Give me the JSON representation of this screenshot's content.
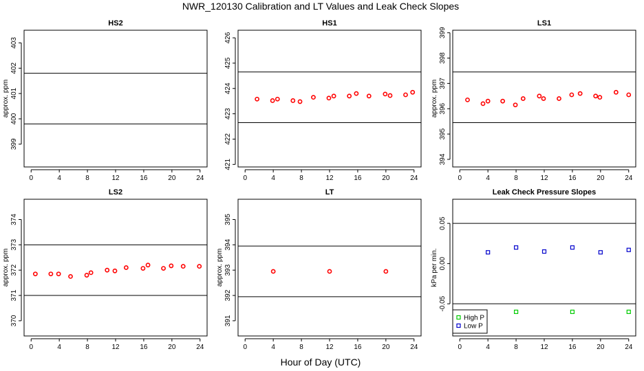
{
  "title": "NWR_120130  Calibration and LT Values and Leak Check Slopes",
  "xlabel": "Hour of Day (UTC)",
  "chart_data": [
    {
      "type": "scatter",
      "title": "HS2",
      "ylabel": "approx. ppm",
      "xlim": [
        -1,
        25
      ],
      "ylim": [
        398.1,
        403.5
      ],
      "xticks": [
        0,
        4,
        8,
        12,
        16,
        20,
        24
      ],
      "yticks": [
        399,
        400,
        401,
        402,
        403
      ],
      "hlines": [
        401.8,
        399.8
      ],
      "series": [
        {
          "marker": "circle",
          "color": "#ff0000",
          "x": [],
          "y": []
        }
      ]
    },
    {
      "type": "scatter",
      "title": "HS1",
      "ylabel": "",
      "xlim": [
        -1,
        25
      ],
      "ylim": [
        420.9,
        426.3
      ],
      "xticks": [
        0,
        4,
        8,
        12,
        16,
        20,
        24
      ],
      "yticks": [
        421,
        422,
        423,
        424,
        425,
        426
      ],
      "hlines": [
        424.65,
        422.65
      ],
      "series": [
        {
          "marker": "circle",
          "color": "#ff0000",
          "x": [
            1.7,
            3.9,
            4.6,
            6.8,
            7.8,
            9.7,
            11.9,
            12.6,
            14.8,
            15.8,
            17.6,
            19.9,
            20.6,
            22.8,
            23.8
          ],
          "y": [
            423.58,
            423.52,
            423.58,
            423.52,
            423.48,
            423.65,
            423.62,
            423.7,
            423.7,
            423.8,
            423.7,
            423.78,
            423.72,
            423.75,
            423.85
          ]
        }
      ]
    },
    {
      "type": "scatter",
      "title": "LS1",
      "ylabel": "approx. ppm",
      "xlim": [
        -1,
        25
      ],
      "ylim": [
        393.7,
        399.1
      ],
      "xticks": [
        0,
        4,
        8,
        12,
        16,
        20,
        24
      ],
      "yticks": [
        394,
        395,
        396,
        397,
        398,
        399
      ],
      "hlines": [
        397.45,
        395.45
      ],
      "series": [
        {
          "marker": "circle",
          "color": "#ff0000",
          "x": [
            1.1,
            3.3,
            4.0,
            6.1,
            7.9,
            9.0,
            11.3,
            11.9,
            14.1,
            15.9,
            17.1,
            19.3,
            19.9,
            22.2,
            24.0
          ],
          "y": [
            396.35,
            396.2,
            396.3,
            396.3,
            396.15,
            396.4,
            396.5,
            396.4,
            396.4,
            396.55,
            396.6,
            396.5,
            396.45,
            396.65,
            396.55
          ]
        }
      ]
    },
    {
      "type": "scatter",
      "title": "LS2",
      "ylabel": "approx. ppm",
      "xlim": [
        -1,
        25
      ],
      "ylim": [
        369.4,
        374.8
      ],
      "xticks": [
        0,
        4,
        8,
        12,
        16,
        20,
        24
      ],
      "yticks": [
        370,
        371,
        372,
        373,
        374
      ],
      "hlines": [
        373.0,
        371.0
      ],
      "series": [
        {
          "marker": "circle",
          "color": "#ff0000",
          "x": [
            0.6,
            2.8,
            3.9,
            5.6,
            7.9,
            8.5,
            10.8,
            11.9,
            13.5,
            15.9,
            16.6,
            18.8,
            19.9,
            21.6,
            23.9
          ],
          "y": [
            371.85,
            371.85,
            371.85,
            371.75,
            371.8,
            371.9,
            372.0,
            371.97,
            372.1,
            372.07,
            372.2,
            372.07,
            372.17,
            372.15,
            372.15
          ]
        }
      ]
    },
    {
      "type": "scatter",
      "title": "LT",
      "ylabel": "approx. ppm",
      "xlim": [
        -1,
        25
      ],
      "ylim": [
        390.4,
        395.8
      ],
      "xticks": [
        0,
        4,
        8,
        12,
        16,
        20,
        24
      ],
      "yticks": [
        391,
        392,
        393,
        394,
        395
      ],
      "hlines": [
        393.95,
        391.95
      ],
      "series": [
        {
          "marker": "circle",
          "color": "#ff0000",
          "x": [
            4.0,
            12.0,
            20.0
          ],
          "y": [
            392.95,
            392.95,
            392.95
          ]
        }
      ]
    },
    {
      "type": "scatter",
      "title": "Leak Check Pressure Slopes",
      "ylabel": "kPa per min.",
      "xlim": [
        -1,
        25
      ],
      "ylim": [
        -0.09,
        0.08
      ],
      "xticks": [
        0,
        4,
        8,
        12,
        16,
        20,
        24
      ],
      "yticks": [
        -0.05,
        0.0,
        0.05
      ],
      "ytick_labels": [
        "-0.05",
        "0.00",
        "0.05"
      ],
      "hlines": [
        0.05,
        -0.05
      ],
      "legend": {
        "placement": "bottom-left",
        "entries": [
          "High P",
          "Low P"
        ]
      },
      "series": [
        {
          "name": "High P",
          "marker": "square",
          "color": "#00cc00",
          "x": [
            8,
            16,
            24
          ],
          "y": [
            -0.06,
            -0.06,
            -0.06
          ]
        },
        {
          "name": "Low P",
          "marker": "square",
          "color": "#0000cc",
          "x": [
            4,
            8,
            12,
            16,
            20,
            24
          ],
          "y": [
            0.014,
            0.02,
            0.015,
            0.02,
            0.014,
            0.017
          ]
        }
      ]
    }
  ]
}
